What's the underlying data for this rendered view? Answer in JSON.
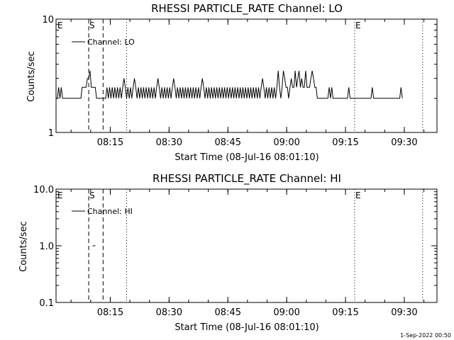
{
  "footer_timestamp": "1-Sep-2022 00:50",
  "colors": {
    "background": "#ffffff",
    "foreground": "#000000"
  },
  "chart_data": [
    {
      "type": "line",
      "title": "RHESSI PARTICLE_RATE Channel: LO",
      "xlabel": "Start Time (08-Jul-16 08:01:10)",
      "ylabel": "Counts/sec",
      "x_start": "08:01:10",
      "x_end": "09:38:20",
      "xlim": [
        "08:01:10",
        "09:38:20"
      ],
      "ylim": [
        1,
        10
      ],
      "y_scale": "log",
      "y_tick_labels": [
        "1",
        "10"
      ],
      "x_tick_labels": [
        "08:15",
        "08:30",
        "08:45",
        "09:00",
        "09:15",
        "09:30"
      ],
      "legend": {
        "label": "Channel: LO",
        "placement": "top-left"
      },
      "grid": false,
      "markers": [
        {
          "label": "E",
          "time": "08:01:10",
          "style": "edge"
        },
        {
          "label": "S",
          "time": "08:09:30",
          "style": "dashed"
        },
        {
          "label": "",
          "time": "08:13:10",
          "style": "dashed"
        },
        {
          "label": "",
          "time": "08:19:10",
          "style": "dotted"
        },
        {
          "label": "E",
          "time": "09:17:20",
          "style": "dotted"
        },
        {
          "label": "",
          "time": "09:34:40",
          "style": "dotted"
        }
      ],
      "series": [
        {
          "name": "Channel: LO",
          "start_time": "08:01:10",
          "step_seconds": 20,
          "values": [
            2,
            2,
            2.5,
            2,
            2.5,
            2,
            2,
            2,
            2,
            2,
            2,
            2,
            2,
            2,
            2,
            2,
            2,
            2,
            2,
            2,
            2.5,
            2.5,
            2.5,
            2.5,
            3,
            3,
            3.5,
            2.5,
            2.5,
            2.5,
            2.5,
            2,
            2,
            2,
            2,
            2,
            2,
            2,
            2,
            2.5,
            2,
            2.5,
            2,
            2.5,
            2,
            2.5,
            2,
            2.5,
            2,
            2.5,
            2,
            2.5,
            3,
            2.5,
            2,
            2.5,
            2,
            2.5,
            2,
            2.5,
            3,
            2.5,
            2,
            2.5,
            2,
            2.5,
            2,
            2.5,
            2,
            2.5,
            2,
            2.5,
            2,
            2.5,
            2,
            2.5,
            2,
            2.5,
            3,
            2.5,
            2,
            2.5,
            2,
            2.5,
            2,
            2.5,
            2,
            2.5,
            2,
            2.5,
            3,
            2.5,
            2,
            2.5,
            2,
            2.5,
            2,
            2.5,
            2,
            2.5,
            2,
            2.5,
            2,
            2.5,
            2,
            2.5,
            2,
            2.5,
            2,
            2.5,
            2,
            2.5,
            3,
            2.5,
            2,
            2.5,
            2,
            2.5,
            2,
            2.5,
            2,
            2.5,
            2,
            2.5,
            2,
            2.5,
            2,
            2.5,
            2,
            2.5,
            2,
            2.5,
            2,
            2.5,
            2,
            2.5,
            2,
            2.5,
            2,
            2.5,
            2,
            2.5,
            2,
            2.5,
            2,
            2.5,
            2,
            2.5,
            2,
            2.5,
            2,
            2.5,
            2,
            2.5,
            2,
            2.5,
            2,
            2.5,
            3,
            2.5,
            2,
            2.5,
            2,
            2.5,
            2,
            2.5,
            2,
            2.5,
            2,
            2.5,
            3.5,
            2.5,
            2,
            2.5,
            3.5,
            3,
            2.5,
            2.5,
            2,
            2.5,
            3,
            2.5,
            2.5,
            3.5,
            2.5,
            3,
            3.5,
            2.5,
            3,
            2.5,
            2.5,
            3.5,
            2.5,
            2.5,
            2.5,
            3,
            3.5,
            3,
            2.5,
            2.5,
            2,
            2,
            2,
            2,
            2,
            2,
            2,
            2,
            2,
            2.5,
            2,
            2.5,
            2,
            2,
            2,
            2,
            2,
            2,
            2,
            2,
            2,
            2,
            2,
            2,
            2.5,
            2,
            2,
            2,
            2,
            2,
            2,
            2,
            2,
            2,
            2,
            2,
            2,
            2,
            2,
            2,
            2,
            2,
            2.5,
            2,
            2,
            2,
            2,
            2,
            2,
            2,
            2,
            2,
            2,
            2,
            2,
            2,
            2,
            2,
            2,
            2,
            2,
            2,
            2,
            2,
            2.5,
            2
          ]
        }
      ]
    },
    {
      "type": "line",
      "title": "RHESSI PARTICLE_RATE Channel: HI",
      "xlabel": "Start Time (08-Jul-16 08:01:10)",
      "ylabel": "Counts/sec",
      "x_start": "08:01:10",
      "x_end": "09:38:20",
      "xlim": [
        "08:01:10",
        "09:38:20"
      ],
      "ylim": [
        0.1,
        10
      ],
      "y_scale": "log",
      "y_tick_labels": [
        "0.1",
        "1.0",
        "10.0"
      ],
      "x_tick_labels": [
        "08:15",
        "08:30",
        "08:45",
        "09:00",
        "09:15",
        "09:30"
      ],
      "legend": {
        "label": "Channel: HI",
        "placement": "top-left"
      },
      "grid": false,
      "markers": [
        {
          "label": "E",
          "time": "08:01:10",
          "style": "edge"
        },
        {
          "label": "S",
          "time": "08:09:30",
          "style": "dashed"
        },
        {
          "label": "",
          "time": "08:13:10",
          "style": "dashed"
        },
        {
          "label": "",
          "time": "08:19:10",
          "style": "dotted"
        },
        {
          "label": "E",
          "time": "09:17:20",
          "style": "dotted"
        },
        {
          "label": "",
          "time": "09:34:40",
          "style": "dotted"
        }
      ],
      "series": [
        {
          "name": "Channel: HI",
          "points": [
            {
              "time": "08:10:50",
              "value": 1.0
            }
          ]
        }
      ]
    }
  ]
}
